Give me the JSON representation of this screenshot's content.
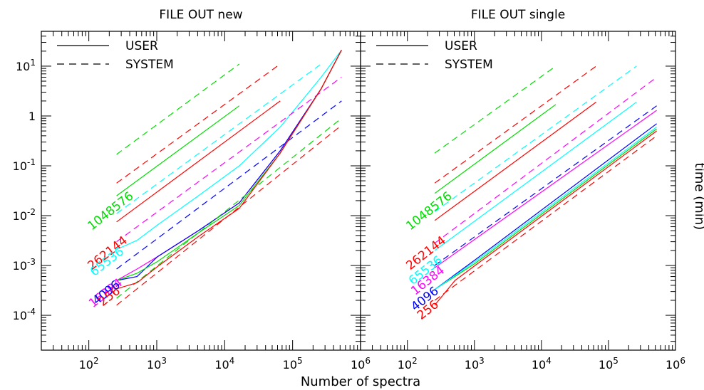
{
  "figure": {
    "xlabel": "Number of spectra",
    "ylabel": "time (min)"
  },
  "chart_data": [
    {
      "type": "line",
      "title": "FILE OUT new",
      "xlabel": "Number of spectra",
      "ylabel": "time (min)",
      "x_scale": "log",
      "y_scale": "log",
      "xlim": [
        20,
        1000000
      ],
      "ylim": [
        2e-05,
        50
      ],
      "x_ticks": [
        100,
        1000,
        10000,
        100000,
        1000000
      ],
      "x_tick_labels": [
        "10^2",
        "10^3",
        "10^4",
        "10^5",
        "10^6"
      ],
      "y_ticks": [
        0.0001,
        0.001,
        0.01,
        0.1,
        1,
        10
      ],
      "y_tick_labels": [
        "10^-4",
        "10^-3",
        "10^-2",
        "10^-1",
        "1",
        "10^1"
      ],
      "legend": {
        "placement": "top-left",
        "entries": [
          {
            "label": "USER",
            "style": "solid"
          },
          {
            "label": "SYSTEM",
            "style": "dashed"
          }
        ]
      },
      "grid": false,
      "curve_labels": [
        {
          "text": "1048576",
          "color": "#00dd00",
          "x": 110,
          "y": 0.005
        },
        {
          "text": "262144",
          "color": "#ff0000",
          "x": 110,
          "y": 0.0008
        },
        {
          "text": "65536",
          "color": "#00ffff",
          "x": 120,
          "y": 0.0006
        },
        {
          "text": "16384",
          "color": "#ff00ff",
          "x": 115,
          "y": 0.00014
        },
        {
          "text": "4096",
          "color": "#0000ff",
          "x": 130,
          "y": 0.00016
        },
        {
          "text": "256",
          "color": "#ff0000",
          "x": 160,
          "y": 0.00015
        }
      ],
      "series": [
        {
          "group": "1048576",
          "kind": "USER",
          "color": "#00dd00",
          "dash": false,
          "x": [
            256,
            16384
          ],
          "y": [
            0.025,
            1.6
          ]
        },
        {
          "group": "1048576",
          "kind": "SYSTEM",
          "color": "#00dd00",
          "dash": true,
          "x": [
            256,
            16384
          ],
          "y": [
            0.17,
            11
          ]
        },
        {
          "group": "262144",
          "kind": "USER",
          "color": "#ff0000",
          "dash": false,
          "x": [
            256,
            65536
          ],
          "y": [
            0.0075,
            2
          ]
        },
        {
          "group": "262144",
          "kind": "SYSTEM",
          "color": "#ff0000",
          "dash": true,
          "x": [
            256,
            65536
          ],
          "y": [
            0.045,
            11
          ]
        },
        {
          "group": "65536",
          "kind": "USER",
          "color": "#00ffff",
          "dash": false,
          "x": [
            256,
            512,
            1024,
            4096,
            16384,
            65536,
            262144,
            524288
          ],
          "y": [
            0.0021,
            0.0032,
            0.0065,
            0.025,
            0.1,
            0.6,
            6,
            21
          ]
        },
        {
          "group": "65536",
          "kind": "SYSTEM",
          "color": "#00ffff",
          "dash": true,
          "x": [
            256,
            262144
          ],
          "y": [
            0.011,
            11
          ]
        },
        {
          "group": "16384",
          "kind": "USER",
          "color": "#ff00ff",
          "dash": false,
          "x": [
            256,
            512,
            1024,
            4096,
            16384,
            65536,
            262144,
            524288
          ],
          "y": [
            0.0005,
            0.00085,
            0.0015,
            0.005,
            0.018,
            0.2,
            3.5,
            21
          ]
        },
        {
          "group": "16384",
          "kind": "SYSTEM",
          "color": "#ff00ff",
          "dash": true,
          "x": [
            256,
            524288
          ],
          "y": [
            0.003,
            6
          ]
        },
        {
          "group": "4096",
          "kind": "USER",
          "color": "#0000ff",
          "dash": false,
          "x": [
            256,
            512,
            1024,
            4096,
            16384,
            65536,
            262144,
            524288
          ],
          "y": [
            0.0005,
            0.0006,
            0.0015,
            0.005,
            0.018,
            0.2,
            3.5,
            21
          ]
        },
        {
          "group": "4096",
          "kind": "SYSTEM",
          "color": "#0000ff",
          "dash": true,
          "x": [
            256,
            524288
          ],
          "y": [
            0.00085,
            2
          ]
        },
        {
          "group": "1048576",
          "kind": "USER (low)",
          "color": "#00dd00",
          "dash": false,
          "x": [
            256,
            512,
            1024,
            4096,
            16384,
            65536,
            262144,
            524288
          ],
          "y": [
            0.0005,
            0.0007,
            0.0012,
            0.0045,
            0.016,
            0.18,
            3.5,
            21
          ]
        },
        {
          "group": "1048576",
          "kind": "SYSTEM (low)",
          "color": "#00dd00",
          "dash": true,
          "x": [
            256,
            524288
          ],
          "y": [
            0.00022,
            0.9
          ]
        },
        {
          "group": "256",
          "kind": "USER",
          "color": "#ff0000",
          "dash": false,
          "x": [
            256,
            512,
            1024,
            4096,
            16384,
            65536,
            262144,
            524288
          ],
          "y": [
            0.00034,
            0.00045,
            0.00095,
            0.0038,
            0.014,
            0.18,
            3.5,
            21
          ]
        },
        {
          "group": "256",
          "kind": "SYSTEM",
          "color": "#ff0000",
          "dash": true,
          "x": [
            256,
            524288
          ],
          "y": [
            0.00016,
            0.65
          ]
        }
      ]
    },
    {
      "type": "line",
      "title": "FILE OUT single",
      "xlabel": "Number of spectra",
      "ylabel": "time (min)",
      "x_scale": "log",
      "y_scale": "log",
      "xlim": [
        20,
        1000000
      ],
      "ylim": [
        2e-05,
        50
      ],
      "x_ticks": [
        100,
        1000,
        10000,
        100000,
        1000000
      ],
      "x_tick_labels": [
        "10^2",
        "10^3",
        "10^4",
        "10^5",
        "10^6"
      ],
      "y_ticks": [
        0.0001,
        0.001,
        0.01,
        0.1,
        1,
        10
      ],
      "y_tick_labels": [
        "10^-4",
        "10^-3",
        "10^-2",
        "10^-1",
        "1",
        "10^1"
      ],
      "legend": {
        "placement": "top-left",
        "entries": [
          {
            "label": "USER",
            "style": "solid"
          },
          {
            "label": "SYSTEM",
            "style": "dashed"
          }
        ]
      },
      "grid": false,
      "curve_labels": [
        {
          "text": "1048576",
          "color": "#00dd00",
          "x": 110,
          "y": 0.005
        },
        {
          "text": "262144",
          "color": "#ff0000",
          "x": 110,
          "y": 0.0008
        },
        {
          "text": "65536",
          "color": "#00ffff",
          "x": 120,
          "y": 0.0004
        },
        {
          "text": "16384",
          "color": "#ff00ff",
          "x": 130,
          "y": 0.00025
        },
        {
          "text": "4096",
          "color": "#0000ff",
          "x": 130,
          "y": 0.00012
        },
        {
          "text": "256",
          "color": "#ff0000",
          "x": 160,
          "y": 8e-05
        }
      ],
      "series": [
        {
          "group": "1048576",
          "kind": "USER",
          "color": "#00dd00",
          "dash": false,
          "x": [
            256,
            16384
          ],
          "y": [
            0.028,
            1.7
          ]
        },
        {
          "group": "1048576",
          "kind": "SYSTEM",
          "color": "#00dd00",
          "dash": true,
          "x": [
            256,
            16384
          ],
          "y": [
            0.18,
            10
          ]
        },
        {
          "group": "262144",
          "kind": "USER",
          "color": "#ff0000",
          "dash": false,
          "x": [
            256,
            65536
          ],
          "y": [
            0.008,
            1.9
          ]
        },
        {
          "group": "262144",
          "kind": "SYSTEM",
          "color": "#ff0000",
          "dash": true,
          "x": [
            256,
            65536
          ],
          "y": [
            0.045,
            10
          ]
        },
        {
          "group": "65536",
          "kind": "USER",
          "color": "#00ffff",
          "dash": false,
          "x": [
            256,
            262144
          ],
          "y": [
            0.002,
            1.9
          ]
        },
        {
          "group": "65536",
          "kind": "SYSTEM",
          "color": "#00ffff",
          "dash": true,
          "x": [
            256,
            262144
          ],
          "y": [
            0.012,
            10
          ]
        },
        {
          "group": "16384",
          "kind": "USER",
          "color": "#ff00ff",
          "dash": false,
          "x": [
            256,
            524288
          ],
          "y": [
            0.0009,
            1.3
          ]
        },
        {
          "group": "16384",
          "kind": "SYSTEM",
          "color": "#ff00ff",
          "dash": true,
          "x": [
            256,
            524288
          ],
          "y": [
            0.0028,
            6
          ]
        },
        {
          "group": "4096",
          "kind": "USER",
          "color": "#0000ff",
          "dash": false,
          "x": [
            256,
            1024,
            524288
          ],
          "y": [
            0.00033,
            0.0013,
            0.7
          ]
        },
        {
          "group": "4096",
          "kind": "SYSTEM",
          "color": "#0000ff",
          "dash": true,
          "x": [
            256,
            524288
          ],
          "y": [
            0.001,
            1.6
          ]
        },
        {
          "group": "1048576",
          "kind": "USER (low)",
          "color": "#00dd00",
          "dash": false,
          "x": [
            256,
            1024,
            524288
          ],
          "y": [
            0.00033,
            0.0011,
            0.55
          ]
        },
        {
          "group": "65536",
          "kind": "USER (low)",
          "color": "#00ffff",
          "dash": false,
          "x": [
            256,
            1024,
            524288
          ],
          "y": [
            0.00033,
            0.0012,
            0.6
          ]
        },
        {
          "group": "256",
          "kind": "USER",
          "color": "#ff0000",
          "dash": false,
          "x": [
            256,
            512,
            1024,
            524288
          ],
          "y": [
            0.00016,
            0.0005,
            0.001,
            0.5
          ]
        },
        {
          "group": "256",
          "kind": "SYSTEM",
          "color": "#ff0000",
          "dash": true,
          "x": [
            256,
            524288
          ],
          "y": [
            0.0002,
            0.4
          ]
        }
      ]
    }
  ]
}
